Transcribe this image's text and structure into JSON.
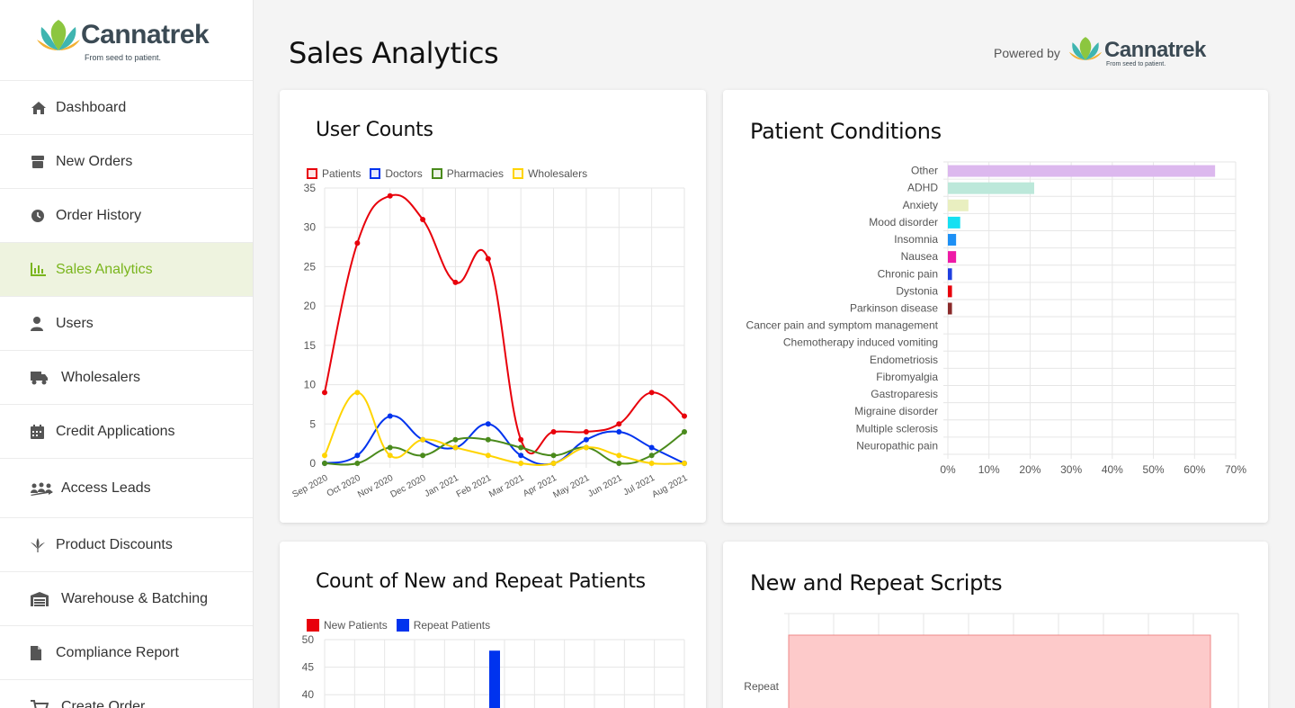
{
  "brand": {
    "name": "Cannatrek",
    "tagline": "From seed to patient."
  },
  "sidebar": {
    "items": [
      {
        "label": "Dashboard"
      },
      {
        "label": "New Orders"
      },
      {
        "label": "Order History"
      },
      {
        "label": "Sales Analytics"
      },
      {
        "label": "Users"
      },
      {
        "label": "Wholesalers"
      },
      {
        "label": "Credit Applications"
      },
      {
        "label": "Access Leads"
      },
      {
        "label": "Product Discounts"
      },
      {
        "label": "Warehouse & Batching"
      },
      {
        "label": "Compliance Report"
      },
      {
        "label": "Create Order"
      }
    ]
  },
  "header": {
    "title": "Sales Analytics",
    "powered_by": "Powered by"
  },
  "colors": {
    "accent": "#7ab51d",
    "patients": "#e8000b",
    "doctors": "#0033ee",
    "pharmacies": "#4a8a1c",
    "wholesalers": "#ffd400"
  },
  "cards": {
    "user_counts": {
      "title": "User Counts"
    },
    "patient_conditions": {
      "title": "Patient Conditions"
    },
    "new_repeat_patients": {
      "title": "Count of New and Repeat Patients"
    },
    "new_repeat_scripts": {
      "title": "New and Repeat Scripts"
    }
  },
  "chart_data": [
    {
      "type": "line",
      "x": [
        "Sep 2020",
        "Oct 2020",
        "Nov 2020",
        "Dec 2020",
        "Jan 2021",
        "Feb 2021",
        "Mar 2021",
        "Apr 2021",
        "May 2021",
        "Jun 2021",
        "Jul 2021",
        "Aug 2021"
      ],
      "ylim": [
        0,
        35
      ],
      "yticks": [
        "0",
        "5",
        "10",
        "15",
        "20",
        "25",
        "30",
        "35"
      ],
      "grid": true,
      "legend": "top",
      "series": [
        {
          "name": "Patients",
          "color": "#e8000b",
          "values": [
            9,
            28,
            34,
            31,
            23,
            26,
            3,
            4,
            4,
            5,
            9,
            6
          ]
        },
        {
          "name": "Doctors",
          "color": "#0033ee",
          "values": [
            0,
            1,
            6,
            3,
            2,
            5,
            1,
            0,
            3,
            4,
            2,
            0
          ]
        },
        {
          "name": "Pharmacies",
          "color": "#4a8a1c",
          "values": [
            0,
            0,
            2,
            1,
            3,
            3,
            2,
            1,
            2,
            0,
            1,
            4
          ]
        },
        {
          "name": "Wholesalers",
          "color": "#ffd400",
          "values": [
            1,
            9,
            1,
            3,
            2,
            1,
            0,
            0,
            2,
            1,
            0,
            0
          ]
        }
      ]
    },
    {
      "type": "bar",
      "orientation": "horizontal",
      "categories": [
        "Other",
        "ADHD",
        "Anxiety",
        "Mood disorder",
        "Insomnia",
        "Nausea",
        "Chronic pain",
        "Dystonia",
        "Parkinson disease",
        "Cancer pain and symptom management",
        "Chemotherapy induced vomiting",
        "Endometriosis",
        "Fibromyalgia",
        "Gastroparesis",
        "Migraine disorder",
        "Multiple sclerosis",
        "Neuropathic pain"
      ],
      "values": [
        65,
        21,
        5,
        3,
        2,
        2,
        1,
        1,
        1,
        0,
        0,
        0,
        0,
        0,
        0,
        0,
        0
      ],
      "colors": [
        "#dcb8ee",
        "#bce8da",
        "#e9efc0",
        "#16e0f2",
        "#1e90f5",
        "#ee1aa6",
        "#1f3fe0",
        "#e8000b",
        "#8a2a2a",
        "#cccccc",
        "#cccccc",
        "#cccccc",
        "#cccccc",
        "#cccccc",
        "#cccccc",
        "#cccccc",
        "#cccccc"
      ],
      "xlim": [
        0,
        70
      ],
      "xticks": [
        "0%",
        "10%",
        "20%",
        "30%",
        "40%",
        "50%",
        "60%",
        "70%"
      ],
      "grid": true
    },
    {
      "type": "bar",
      "series": [
        {
          "name": "New Patients",
          "color": "#e8000b"
        },
        {
          "name": "Repeat Patients",
          "color": "#0033ee"
        }
      ],
      "yticks": [
        "50",
        "45",
        "40"
      ],
      "visible_bar": {
        "series": "Repeat Patients",
        "value": 48
      },
      "legend": "top"
    },
    {
      "type": "bar",
      "orientation": "horizontal",
      "categories": [
        "Repeat"
      ],
      "values": [
        1
      ],
      "color": "#fdcaca",
      "grid": true
    }
  ]
}
